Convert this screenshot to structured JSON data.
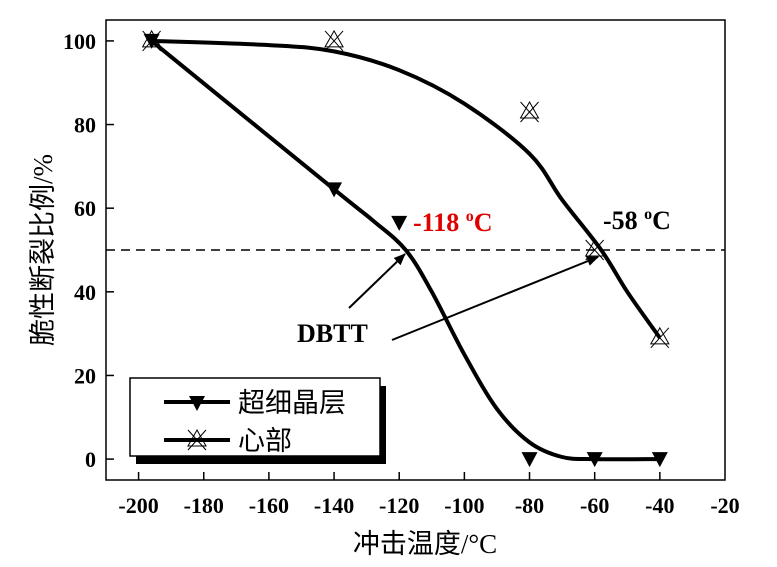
{
  "chart_data": {
    "type": "line",
    "title": "",
    "xlabel": "冲击温度/°C",
    "ylabel": "脆性断裂比例/%",
    "xlim": [
      -210,
      -20
    ],
    "ylim": [
      -5,
      105
    ],
    "xticks": [
      -200,
      -180,
      -160,
      -140,
      -120,
      -100,
      -80,
      -60,
      -40,
      -20
    ],
    "yticks": [
      0,
      20,
      40,
      60,
      80,
      100
    ],
    "grid": false,
    "legend_position": "bottom-left",
    "series": [
      {
        "name": "超细晶层",
        "marker": "filled-down-triangle",
        "points": [
          [
            -196,
            100
          ],
          [
            -140,
            64.5
          ],
          [
            -120,
            56.5
          ],
          [
            -80,
            0
          ],
          [
            -60,
            0
          ],
          [
            -40,
            0
          ]
        ],
        "fit_curve": [
          [
            -196,
            100
          ],
          [
            -140,
            64.5
          ],
          [
            -128,
            57
          ],
          [
            -118,
            50
          ],
          [
            -110,
            40
          ],
          [
            -100,
            25
          ],
          [
            -90,
            12
          ],
          [
            -80,
            4
          ],
          [
            -70,
            0.5
          ],
          [
            -60,
            0
          ],
          [
            -40,
            0
          ]
        ]
      },
      {
        "name": "心部",
        "marker": "crossed-open-triangle",
        "points": [
          [
            -196,
            100
          ],
          [
            -140,
            100
          ],
          [
            -80,
            83
          ],
          [
            -60,
            50
          ],
          [
            -40,
            29
          ]
        ],
        "fit_curve": [
          [
            -196,
            100
          ],
          [
            -160,
            99
          ],
          [
            -140,
            97.5
          ],
          [
            -120,
            93
          ],
          [
            -100,
            85
          ],
          [
            -80,
            73
          ],
          [
            -70,
            62
          ],
          [
            -58,
            50
          ],
          [
            -50,
            40
          ],
          [
            -40,
            29
          ]
        ]
      }
    ],
    "reference_line": {
      "y": 50,
      "style": "dashed"
    },
    "annotations": [
      {
        "text": "-118 °C",
        "base": "-118 ",
        "sup": "o",
        "unit": "C",
        "color": "#e00000"
      },
      {
        "text": "-58 °C",
        "base": "-58 ",
        "sup": "o",
        "unit": "C",
        "color": "#000000"
      },
      {
        "text": "DBTT",
        "color": "#000000"
      }
    ]
  }
}
